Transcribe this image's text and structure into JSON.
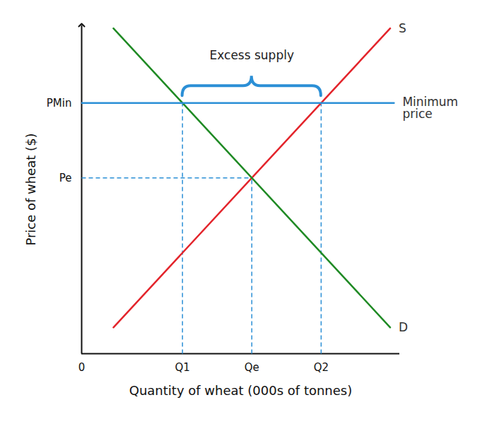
{
  "chart_data": {
    "type": "line",
    "x_label": "Quantity of wheat (000s of tonnes)",
    "y_label": "Price of wheat ($)",
    "xlim": [
      0,
      10
    ],
    "ylim": [
      0,
      10
    ],
    "xticks": [
      0,
      {
        "value": 3.17,
        "label": "Q1"
      },
      {
        "value": 5.35,
        "label": "Qe"
      },
      {
        "value": 7.53,
        "label": "Q2"
      }
    ],
    "yticks": [
      {
        "value": 7.63,
        "label": "PMin"
      },
      {
        "value": 5.35,
        "label": "Pe"
      }
    ],
    "grid": false,
    "series": [
      {
        "name": "S",
        "color": "#e3242b",
        "x": [
          1,
          9.7
        ],
        "values": [
          0.8,
          9.9
        ]
      },
      {
        "name": "D",
        "color": "#1f8a24",
        "x": [
          1,
          9.7
        ],
        "values": [
          9.9,
          0.8
        ]
      },
      {
        "name": "Minimum price",
        "color": "#2b8fd6",
        "x": [
          0,
          9.82
        ],
        "values": [
          7.63,
          7.63
        ]
      }
    ],
    "guides": [
      {
        "x1": 3.17,
        "y1": 0,
        "x2": 3.17,
        "y2": 7.63
      },
      {
        "x1": 5.35,
        "y1": 0,
        "x2": 5.35,
        "y2": 5.35
      },
      {
        "x1": 7.53,
        "y1": 0,
        "x2": 7.53,
        "y2": 7.63
      },
      {
        "x1": 0,
        "y1": 5.35,
        "x2": 5.35,
        "y2": 5.35
      }
    ],
    "annotations": [
      {
        "text": "Excess supply",
        "x1": 3.17,
        "x2": 7.53,
        "y": 7.63
      }
    ]
  }
}
